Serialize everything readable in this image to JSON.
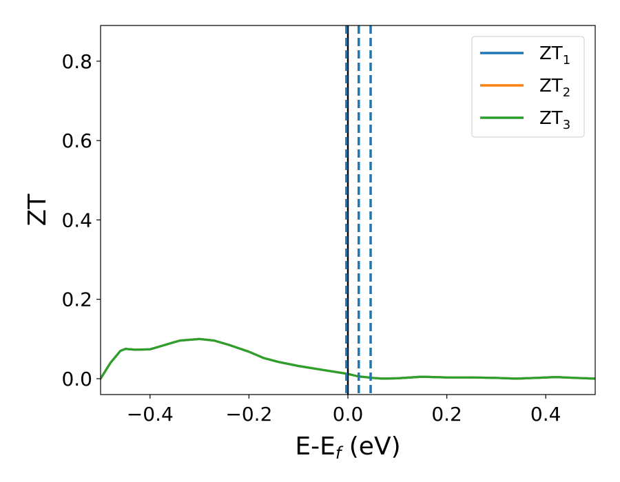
{
  "chart_data": {
    "type": "line",
    "xlabel": "E-E",
    "xlabel_sub": "f",
    "xlabel_unit": " (eV)",
    "ylabel": "ZT",
    "xlim": [
      -0.5,
      0.5
    ],
    "ylim": [
      -0.04,
      0.89
    ],
    "x_ticks": [
      -0.4,
      -0.2,
      0.0,
      0.2,
      0.4
    ],
    "x_tick_labels": [
      "−0.4",
      "−0.2",
      "0.0",
      "0.2",
      "0.4"
    ],
    "y_ticks": [
      0.0,
      0.2,
      0.4,
      0.6,
      0.8
    ],
    "y_tick_labels": [
      "0.0",
      "0.2",
      "0.4",
      "0.6",
      "0.8"
    ],
    "grid": false,
    "legend_position": "top-right",
    "series": [
      {
        "name": "ZT",
        "name_sub": "1",
        "color": "#1f77b4",
        "x": [
          -0.5,
          -0.48,
          -0.46,
          -0.45,
          -0.43,
          -0.4,
          -0.37,
          -0.34,
          -0.3,
          -0.27,
          -0.24,
          -0.2,
          -0.17,
          -0.14,
          -0.1,
          -0.05,
          0.0,
          0.02,
          0.05,
          0.07,
          0.1,
          0.15,
          0.2,
          0.25,
          0.3,
          0.34,
          0.38,
          0.42,
          0.46,
          0.5
        ],
        "y": [
          0.0,
          0.04,
          0.07,
          0.075,
          0.073,
          0.074,
          0.085,
          0.096,
          0.1,
          0.096,
          0.085,
          0.068,
          0.052,
          0.042,
          0.032,
          0.022,
          0.012,
          0.006,
          0.002,
          0.0,
          0.001,
          0.005,
          0.003,
          0.003,
          0.002,
          0.0,
          0.002,
          0.004,
          0.002,
          0.0
        ]
      },
      {
        "name": "ZT",
        "name_sub": "2",
        "color": "#ff7f0e",
        "x": [
          -0.5,
          -0.48,
          -0.46,
          -0.45,
          -0.43,
          -0.4,
          -0.37,
          -0.34,
          -0.3,
          -0.27,
          -0.24,
          -0.2,
          -0.17,
          -0.14,
          -0.1,
          -0.05,
          0.0,
          0.02,
          0.05,
          0.07,
          0.1,
          0.15,
          0.2,
          0.25,
          0.3,
          0.34,
          0.38,
          0.42,
          0.46,
          0.5
        ],
        "y": [
          0.0,
          0.04,
          0.07,
          0.075,
          0.073,
          0.074,
          0.085,
          0.096,
          0.1,
          0.096,
          0.085,
          0.068,
          0.052,
          0.042,
          0.032,
          0.022,
          0.012,
          0.006,
          0.002,
          0.0,
          0.001,
          0.005,
          0.003,
          0.003,
          0.002,
          0.0,
          0.002,
          0.004,
          0.002,
          0.0
        ]
      },
      {
        "name": "ZT",
        "name_sub": "3",
        "color": "#2ca02c",
        "x": [
          -0.5,
          -0.48,
          -0.46,
          -0.45,
          -0.43,
          -0.4,
          -0.37,
          -0.34,
          -0.3,
          -0.27,
          -0.24,
          -0.2,
          -0.17,
          -0.14,
          -0.1,
          -0.05,
          0.0,
          0.02,
          0.05,
          0.07,
          0.1,
          0.15,
          0.2,
          0.25,
          0.3,
          0.34,
          0.38,
          0.42,
          0.46,
          0.5
        ],
        "y": [
          0.0,
          0.04,
          0.07,
          0.075,
          0.073,
          0.074,
          0.085,
          0.096,
          0.1,
          0.096,
          0.085,
          0.068,
          0.052,
          0.042,
          0.032,
          0.022,
          0.012,
          0.006,
          0.002,
          0.0,
          0.001,
          0.005,
          0.003,
          0.003,
          0.002,
          0.0,
          0.002,
          0.004,
          0.002,
          0.0
        ]
      }
    ],
    "vertical_lines": [
      {
        "x": 0.0,
        "color": "#000000",
        "style": "solid"
      },
      {
        "x": -0.003,
        "color": "#1f77b4",
        "style": "dashed"
      },
      {
        "x": 0.022,
        "color": "#1f77b4",
        "style": "dashed"
      },
      {
        "x": 0.046,
        "color": "#1f77b4",
        "style": "dashed"
      }
    ]
  }
}
